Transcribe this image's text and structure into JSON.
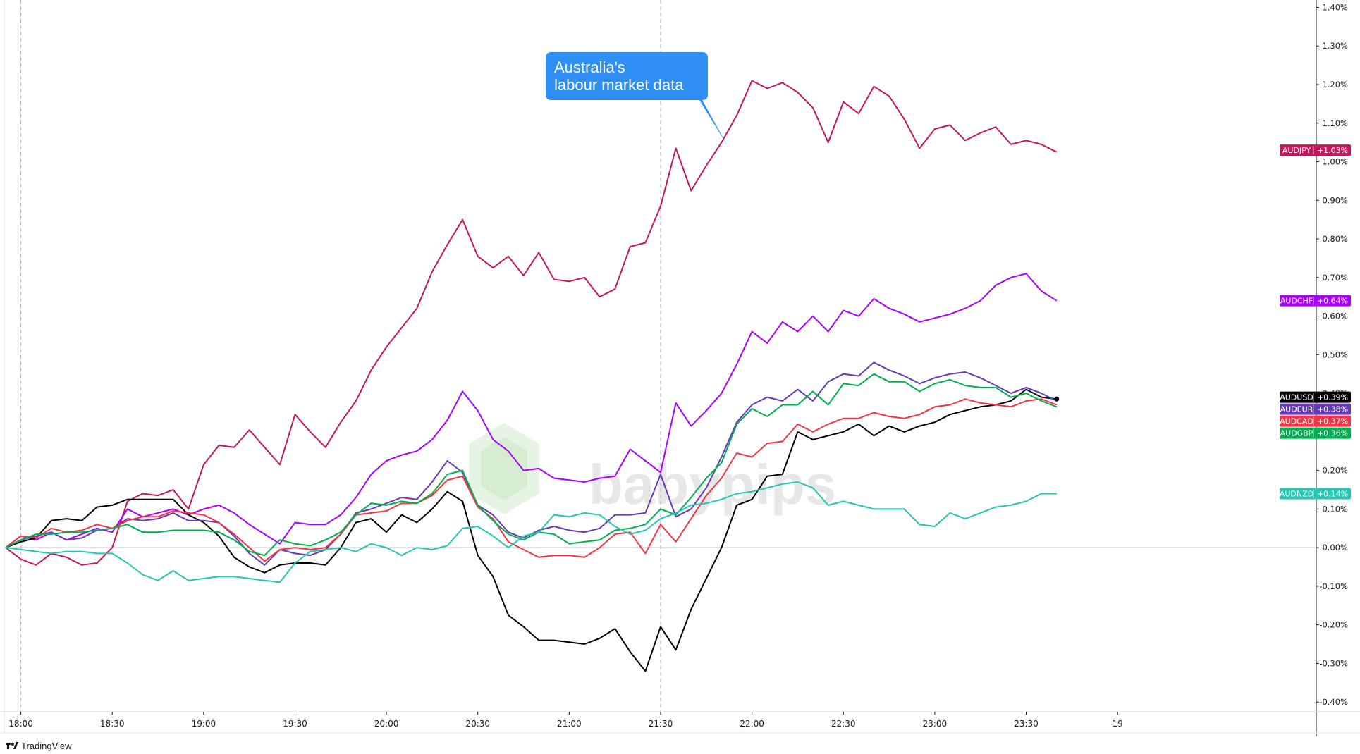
{
  "watermark": {
    "text": "babypips"
  },
  "branding": {
    "text": "TradingView"
  },
  "annotation": {
    "lines": [
      "Australia's",
      "labour market data"
    ],
    "color": "#2f8ff5",
    "event_time": "21:30"
  },
  "colors": {
    "grid": "#d1d4dc",
    "event_line": "#b2b5be",
    "zero_line": "#b2b5be",
    "axis_text": "#131722"
  },
  "chart_data": {
    "type": "line",
    "title": "",
    "xlabel": "",
    "ylabel": "",
    "x_ticks": [
      "18:00",
      "18:30",
      "19:00",
      "19:30",
      "20:00",
      "20:30",
      "21:00",
      "21:30",
      "22:00",
      "22:30",
      "23:00",
      "23:30",
      "19"
    ],
    "x_range": [
      "17:55",
      "01:05"
    ],
    "y_unit": "%",
    "y_ticks": [
      "1.40%",
      "1.30%",
      "1.20%",
      "1.10%",
      "1.00%",
      "0.90%",
      "0.80%",
      "0.70%",
      "0.60%",
      "0.50%",
      "0.40%",
      "0.30%",
      "0.20%",
      "0.10%",
      "0.00%",
      "-0.10%",
      "-0.20%",
      "-0.30%",
      "-0.40%"
    ],
    "ylim": [
      -0.48,
      1.41
    ],
    "vertical_markers": [
      "18:00",
      "21:30"
    ],
    "start_time": "17:55",
    "interval": "5m",
    "series": [
      {
        "name": "AUDJPY",
        "color": "#c2185b",
        "last_label": "+1.03%",
        "last": 1.03,
        "values": [
          0.0,
          -0.03,
          -0.045,
          -0.015,
          -0.025,
          -0.045,
          -0.04,
          0.0,
          0.12,
          0.14,
          0.135,
          0.15,
          0.1,
          0.215,
          0.265,
          0.26,
          0.305,
          0.26,
          0.215,
          0.345,
          0.3,
          0.26,
          0.325,
          0.38,
          0.46,
          0.52,
          0.57,
          0.62,
          0.715,
          0.785,
          0.85,
          0.755,
          0.725,
          0.755,
          0.705,
          0.765,
          0.695,
          0.69,
          0.7,
          0.65,
          0.67,
          0.78,
          0.79,
          0.885,
          1.035,
          0.925,
          0.99,
          1.05,
          1.12,
          1.21,
          1.19,
          1.205,
          1.18,
          1.14,
          1.05,
          1.155,
          1.125,
          1.195,
          1.17,
          1.11,
          1.035,
          1.085,
          1.095,
          1.055,
          1.075,
          1.09,
          1.045,
          1.055,
          1.045,
          1.025
        ]
      },
      {
        "name": "AUDCHF",
        "color": "#aa00ff",
        "last_label": "+0.64%",
        "last": 0.64,
        "values": [
          0.0,
          0.03,
          0.02,
          0.04,
          0.02,
          0.035,
          0.05,
          0.04,
          0.1,
          0.08,
          0.09,
          0.1,
          0.085,
          0.1,
          0.11,
          0.09,
          0.06,
          0.035,
          0.01,
          0.065,
          0.06,
          0.06,
          0.085,
          0.13,
          0.19,
          0.225,
          0.24,
          0.25,
          0.28,
          0.33,
          0.405,
          0.355,
          0.28,
          0.25,
          0.2,
          0.205,
          0.18,
          0.175,
          0.17,
          0.18,
          0.185,
          0.255,
          0.225,
          0.195,
          0.375,
          0.315,
          0.355,
          0.4,
          0.475,
          0.56,
          0.53,
          0.585,
          0.56,
          0.6,
          0.56,
          0.615,
          0.6,
          0.645,
          0.62,
          0.605,
          0.585,
          0.595,
          0.605,
          0.62,
          0.64,
          0.68,
          0.7,
          0.71,
          0.665,
          0.64
        ]
      },
      {
        "name": "AUDUSD",
        "color": "#000000",
        "last_label": "+0.39%",
        "last": 0.39,
        "values": [
          0.0,
          0.015,
          0.025,
          0.07,
          0.075,
          0.07,
          0.105,
          0.11,
          0.125,
          0.125,
          0.125,
          0.125,
          0.085,
          0.065,
          0.03,
          -0.025,
          -0.05,
          -0.065,
          -0.045,
          -0.04,
          -0.04,
          -0.045,
          0.0,
          0.065,
          0.075,
          0.04,
          0.085,
          0.065,
          0.1,
          0.145,
          0.12,
          -0.02,
          -0.075,
          -0.175,
          -0.205,
          -0.24,
          -0.24,
          -0.245,
          -0.25,
          -0.235,
          -0.21,
          -0.27,
          -0.32,
          -0.205,
          -0.265,
          -0.16,
          -0.08,
          0.0,
          0.11,
          0.125,
          0.185,
          0.19,
          0.3,
          0.28,
          0.29,
          0.3,
          0.32,
          0.29,
          0.315,
          0.3,
          0.315,
          0.325,
          0.345,
          0.355,
          0.365,
          0.37,
          0.38,
          0.41,
          0.39,
          0.385
        ]
      },
      {
        "name": "AUDEUR",
        "color": "#673ab7",
        "last_label": "+0.38%",
        "last": 0.38,
        "values": [
          0.0,
          0.02,
          0.03,
          0.04,
          0.02,
          0.025,
          0.045,
          0.05,
          0.075,
          0.07,
          0.075,
          0.09,
          0.07,
          0.07,
          0.065,
          0.03,
          -0.015,
          -0.045,
          -0.005,
          -0.015,
          -0.02,
          -0.005,
          0.035,
          0.09,
          0.1,
          0.115,
          0.13,
          0.125,
          0.17,
          0.225,
          0.195,
          0.11,
          0.085,
          0.04,
          0.025,
          0.045,
          0.055,
          0.045,
          0.04,
          0.05,
          0.085,
          0.085,
          0.09,
          0.19,
          0.08,
          0.1,
          0.155,
          0.235,
          0.325,
          0.37,
          0.39,
          0.38,
          0.41,
          0.38,
          0.43,
          0.45,
          0.445,
          0.48,
          0.46,
          0.445,
          0.425,
          0.44,
          0.45,
          0.455,
          0.44,
          0.42,
          0.4,
          0.415,
          0.4,
          0.38
        ]
      },
      {
        "name": "AUDCAD",
        "color": "#f23645",
        "last_label": "+0.37%",
        "last": 0.37,
        "values": [
          0.0,
          0.03,
          0.025,
          0.05,
          0.04,
          0.045,
          0.06,
          0.05,
          0.07,
          0.08,
          0.08,
          0.095,
          0.09,
          0.085,
          0.065,
          0.035,
          0.0,
          -0.035,
          -0.005,
          0.0,
          -0.005,
          0.0,
          0.035,
          0.085,
          0.09,
          0.095,
          0.115,
          0.115,
          0.135,
          0.175,
          0.185,
          0.105,
          0.075,
          0.015,
          -0.005,
          -0.025,
          -0.02,
          -0.02,
          -0.025,
          0.0,
          0.035,
          0.04,
          -0.015,
          0.06,
          0.015,
          0.075,
          0.135,
          0.18,
          0.245,
          0.235,
          0.27,
          0.275,
          0.32,
          0.3,
          0.32,
          0.335,
          0.335,
          0.35,
          0.34,
          0.335,
          0.345,
          0.365,
          0.37,
          0.385,
          0.375,
          0.37,
          0.365,
          0.38,
          0.385,
          0.37
        ]
      },
      {
        "name": "AUDGBP",
        "color": "#00b050",
        "last_label": "+0.36%",
        "last": 0.36,
        "values": [
          0.0,
          0.02,
          0.035,
          0.035,
          0.04,
          0.04,
          0.045,
          0.05,
          0.06,
          0.04,
          0.04,
          0.045,
          0.045,
          0.045,
          0.04,
          0.02,
          -0.01,
          -0.02,
          0.02,
          0.01,
          0.005,
          0.02,
          0.04,
          0.085,
          0.115,
          0.11,
          0.12,
          0.115,
          0.14,
          0.19,
          0.2,
          0.11,
          0.07,
          0.035,
          0.02,
          0.04,
          0.035,
          0.01,
          0.015,
          0.02,
          0.045,
          0.05,
          0.06,
          0.1,
          0.085,
          0.13,
          0.18,
          0.22,
          0.32,
          0.36,
          0.34,
          0.37,
          0.37,
          0.405,
          0.37,
          0.425,
          0.42,
          0.45,
          0.43,
          0.43,
          0.405,
          0.425,
          0.435,
          0.42,
          0.415,
          0.415,
          0.39,
          0.4,
          0.38,
          0.365
        ]
      },
      {
        "name": "AUDNZD",
        "color": "#26c6b0",
        "last_label": "+0.14%",
        "last": 0.14,
        "values": [
          0.0,
          -0.005,
          -0.01,
          -0.015,
          -0.01,
          -0.01,
          -0.015,
          -0.015,
          -0.04,
          -0.07,
          -0.085,
          -0.06,
          -0.085,
          -0.08,
          -0.075,
          -0.075,
          -0.08,
          -0.085,
          -0.09,
          -0.04,
          -0.01,
          -0.005,
          0.0,
          -0.01,
          0.01,
          0.0,
          -0.02,
          0.0,
          -0.005,
          0.005,
          0.05,
          0.055,
          0.03,
          0.0,
          0.03,
          0.04,
          0.085,
          0.08,
          0.09,
          0.085,
          0.055,
          0.035,
          0.045,
          0.075,
          0.09,
          0.11,
          0.115,
          0.125,
          0.14,
          0.145,
          0.155,
          0.165,
          0.17,
          0.155,
          0.11,
          0.12,
          0.11,
          0.1,
          0.1,
          0.1,
          0.06,
          0.055,
          0.09,
          0.075,
          0.09,
          0.105,
          0.11,
          0.12,
          0.14,
          0.14
        ]
      }
    ]
  }
}
